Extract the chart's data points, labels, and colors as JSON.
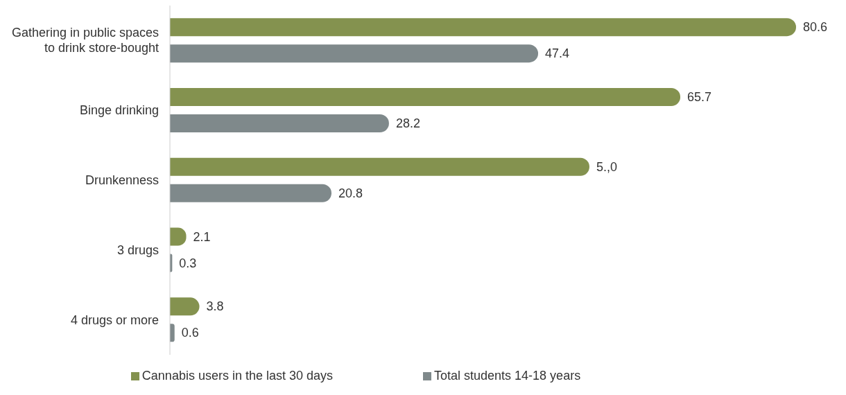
{
  "chart_data": {
    "type": "bar",
    "orientation": "horizontal",
    "categories": [
      "Gathering in public spaces to drink store-bought",
      "Binge drinking",
      "Drunkenness",
      "3 drugs",
      "4 drugs or more"
    ],
    "series": [
      {
        "name": "Cannabis users in the last 30 days",
        "color": "#84924f",
        "values": [
          80.6,
          65.7,
          54.0,
          2.1,
          3.8
        ],
        "value_labels": [
          "80.6",
          "65.7",
          "5.,0",
          "2.1",
          "3.8"
        ]
      },
      {
        "name": "Total students 14-18 years",
        "color": "#7f898b",
        "values": [
          47.4,
          28.2,
          20.8,
          0.3,
          0.6
        ],
        "value_labels": [
          "47.4",
          "28.2",
          "20.8",
          "0.3",
          "0.6"
        ]
      }
    ],
    "legend": "bottom",
    "grid": false
  }
}
